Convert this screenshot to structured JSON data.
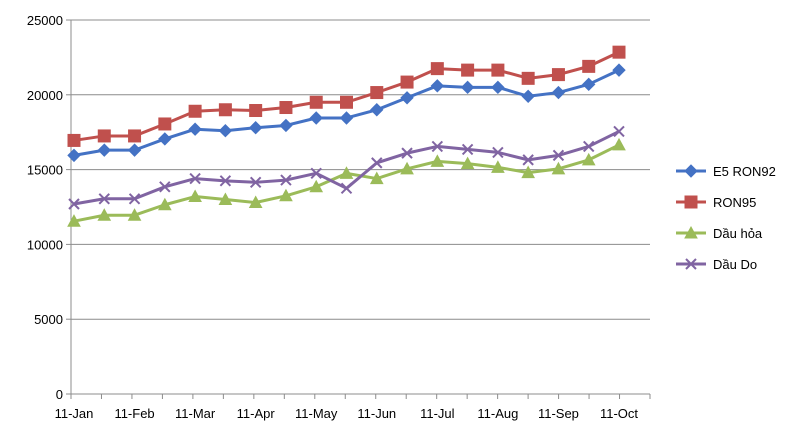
{
  "chart_data": {
    "type": "line",
    "title": "",
    "xlabel": "",
    "ylabel": "",
    "ylim": [
      0,
      25000
    ],
    "yticks": [
      0,
      5000,
      10000,
      15000,
      20000,
      25000
    ],
    "ytick_labels": [
      "0",
      "5000",
      "10000",
      "15000",
      "20000",
      "25000"
    ],
    "x_tick_labels": [
      "11-Jan",
      "11-Feb",
      "11-Mar",
      "11-Apr",
      "11-May",
      "11-Jun",
      "11-Jul",
      "11-Aug",
      "11-Sep",
      "11-Oct"
    ],
    "x_tick_positions": [
      0,
      2,
      4,
      6,
      8,
      10,
      12,
      14,
      16,
      18
    ],
    "grid": "horizontal",
    "legend_position": "right",
    "series": [
      {
        "name": "E5 RON92",
        "color": "#4472C4",
        "marker": "diamond",
        "values": [
          15950,
          16300,
          16300,
          17050,
          17700,
          17600,
          17800,
          17950,
          18450,
          18450,
          19000,
          19800,
          20600,
          20500,
          20500,
          19900,
          20150,
          20700,
          21650
        ]
      },
      {
        "name": "RON95",
        "color": "#C0504D",
        "marker": "square",
        "values": [
          16950,
          17250,
          17250,
          18050,
          18900,
          19000,
          18950,
          19150,
          19500,
          19500,
          20150,
          20850,
          21750,
          21650,
          21650,
          21100,
          21350,
          21900,
          22850
        ]
      },
      {
        "name": "Dầu hỏa",
        "color": "#9BBB59",
        "marker": "triangle",
        "values": [
          11550,
          11950,
          11950,
          12650,
          13200,
          13000,
          12800,
          13250,
          13850,
          14750,
          14400,
          15050,
          15550,
          15400,
          15150,
          14800,
          15050,
          15650,
          16650
        ]
      },
      {
        "name": "Dầu Do",
        "color": "#8064A2",
        "marker": "x",
        "values": [
          12700,
          13050,
          13050,
          13850,
          14400,
          14250,
          14150,
          14300,
          14750,
          13750,
          15450,
          16100,
          16550,
          16350,
          16150,
          15650,
          15950,
          16550,
          17550
        ]
      }
    ]
  }
}
